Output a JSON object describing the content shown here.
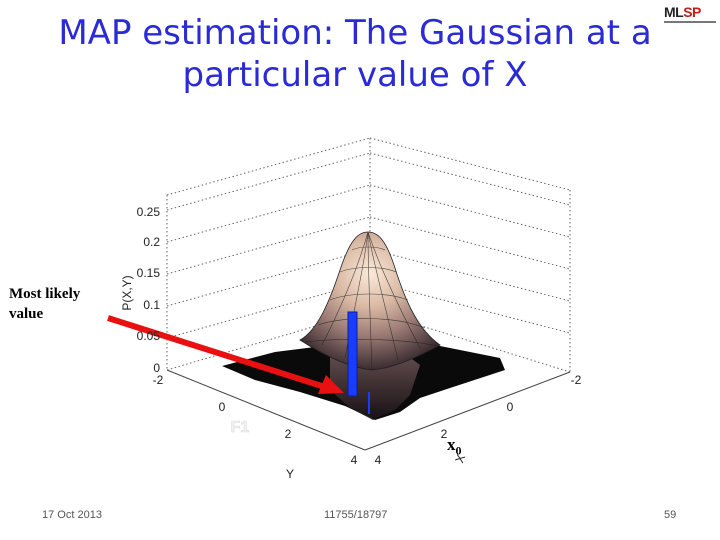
{
  "slide": {
    "title_line1": "MAP estimation: The Gaussian at a",
    "title_line2": "particular value of X",
    "logo_text_a": "ML",
    "logo_text_b": "SP",
    "annotation": "Most likely value",
    "x0_label_main": "x",
    "x0_label_sub": "0",
    "footer_date": "17 Oct 2013",
    "footer_course": "11755/18797",
    "footer_page": "59"
  },
  "plot": {
    "z_ticks": [
      "0.25",
      "0.2",
      "0.15",
      "0.1",
      "0.05",
      "0"
    ],
    "z_label": "P(X,Y)",
    "y_ticks": [
      "-2",
      "0",
      "2",
      "4"
    ],
    "y_label": "Y",
    "x_ticks": [
      "-2",
      "0",
      "2",
      "4"
    ],
    "x_label": "X",
    "f1_label": "F1",
    "colors": {
      "arrow": "#e81010",
      "slice": "#1a3cff",
      "title": "#2a2ad6"
    }
  }
}
